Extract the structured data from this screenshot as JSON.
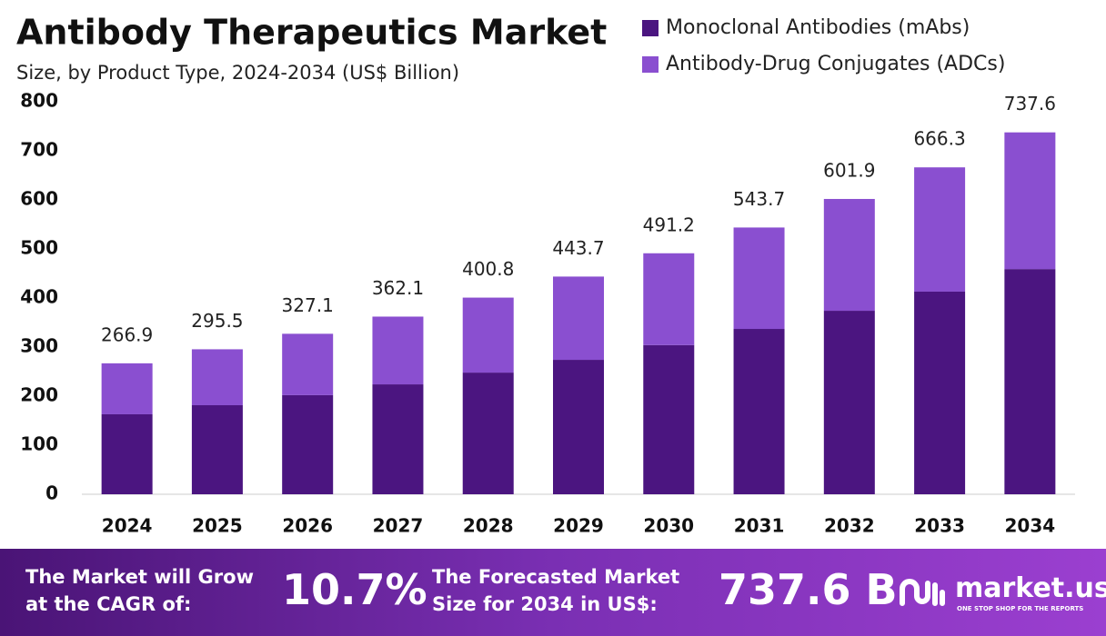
{
  "chart_data": {
    "type": "stacked-bar",
    "title": "Antibody Therapeutics Market",
    "subtitle": "Size, by Product Type, 2024-2034 (US$ Billion)",
    "categories": [
      "2024",
      "2025",
      "2026",
      "2027",
      "2028",
      "2029",
      "2030",
      "2031",
      "2032",
      "2033",
      "2034"
    ],
    "series": [
      {
        "name": "Monoclonal Antibodies (mAbs)",
        "color": "#4b1580",
        "values": [
          163,
          181.5,
          202,
          224,
          248,
          274,
          304,
          337,
          374,
          413,
          459
        ]
      },
      {
        "name": "Antibody-Drug Conjugates (ADCs)",
        "color": "#8a4fd0",
        "values": [
          103.9,
          114,
          125.1,
          138.1,
          152.8,
          169.7,
          187.2,
          206.7,
          227.9,
          253.3,
          278.6
        ]
      }
    ],
    "totals": [
      266.9,
      295.5,
      327.1,
      362.1,
      400.8,
      443.7,
      491.2,
      543.7,
      601.9,
      666.3,
      737.6
    ],
    "ylim": [
      0,
      800
    ],
    "yticks": [
      0,
      100,
      200,
      300,
      400,
      500,
      600,
      700,
      800
    ],
    "grid": false,
    "legend": "top-right"
  },
  "footer": {
    "cagr_text": [
      "The Market will Grow",
      "at the CAGR of:"
    ],
    "cagr_value": "10.7%",
    "forecast_text": [
      "The Forecasted Market",
      "Size for 2034 in US$:"
    ],
    "forecast_value": "737.6 B",
    "brand": "market.us",
    "tagline": "ONE STOP SHOP FOR THE REPORTS"
  }
}
